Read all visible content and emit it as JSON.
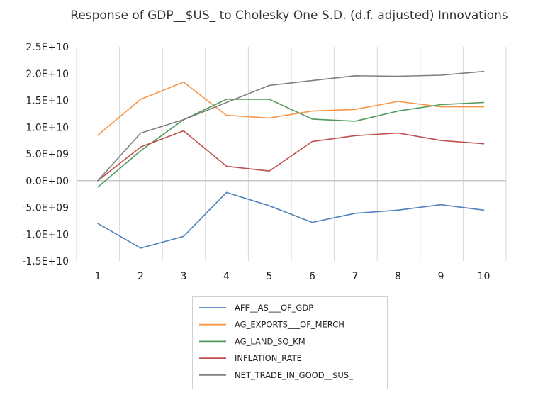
{
  "chart_data": {
    "type": "line",
    "title": "Response of GDP__$US_ to Cholesky One S.D. (d.f. adjusted) Innovations",
    "xlabel": "",
    "ylabel": "",
    "categories": [
      "1",
      "2",
      "3",
      "4",
      "5",
      "6",
      "7",
      "8",
      "9",
      "10"
    ],
    "ylim": [
      -15000000000,
      25000000000
    ],
    "ytick_values": [
      -15000000000,
      -10000000000,
      -5000000000,
      0,
      5000000000,
      10000000000,
      15000000000,
      20000000000,
      25000000000
    ],
    "ytick_labels": [
      "-1.5E+10",
      "-1.0E+10",
      "-5.0E+09",
      "0.0E+00",
      "5.0E+09",
      "1.0E+10",
      "1.5E+10",
      "2.0E+10",
      "2.5E+10"
    ],
    "grid": "vertical",
    "legend_position": "bottom",
    "series": [
      {
        "name": "AFF__AS___OF_GDP",
        "color": "#4F81BD",
        "values": [
          -8000000000,
          -12600000000,
          -10400000000,
          -2200000000,
          -4700000000,
          -7800000000,
          -6100000000,
          -5500000000,
          -4500000000,
          -5500000000
        ]
      },
      {
        "name": "AG_EXPORTS___OF_MERCH",
        "color": "#F79646",
        "values": [
          8500000000,
          15200000000,
          18400000000,
          12200000000,
          11700000000,
          13000000000,
          13300000000,
          14800000000,
          13800000000,
          13800000000
        ]
      },
      {
        "name": "AG_LAND_SQ_KM",
        "color": "#4F9A5C",
        "values": [
          -1200000000,
          5600000000,
          11400000000,
          15200000000,
          15200000000,
          11500000000,
          11100000000,
          13000000000,
          14200000000,
          14600000000
        ]
      },
      {
        "name": "INFLATION_RATE",
        "color": "#C0504D",
        "values": [
          0,
          6300000000,
          9300000000,
          2700000000,
          1800000000,
          7300000000,
          8400000000,
          8900000000,
          7500000000,
          6900000000
        ]
      },
      {
        "name": "NET_TRADE_IN_GOOD__$US_",
        "color": "#7F7F7F",
        "values": [
          0,
          8900000000,
          11400000000,
          14600000000,
          17800000000,
          18700000000,
          19600000000,
          19500000000,
          19700000000,
          20400000000
        ]
      }
    ]
  }
}
